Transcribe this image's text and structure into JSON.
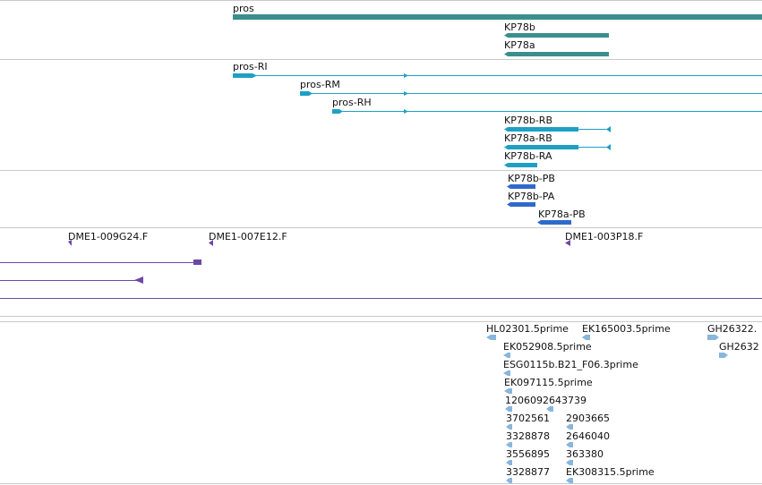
{
  "colors": {
    "gene": "#3a8f8c",
    "transcript": "#1ea0c4",
    "protein": "#2f6acb",
    "clone": "#6b48a8",
    "est": "#88b6dc"
  },
  "genes": {
    "pros": "pros",
    "kp78b": "KP78b",
    "kp78a": "KP78a"
  },
  "transcripts": {
    "pros_ri": "pros-RI",
    "pros_rm": "pros-RM",
    "pros_rh": "pros-RH",
    "kp78b_rb": "KP78b-RB",
    "kp78a_rb": "KP78a-RB",
    "kp78b_ra": "KP78b-RA"
  },
  "proteins": {
    "kp78b_pb": "KP78b-PB",
    "kp78b_pa": "KP78b-PA",
    "kp78a_pb": "KP78a-PB"
  },
  "clones": {
    "c1": "DME1-009G24.F",
    "c2": "DME1-007E12.F",
    "c3": "DME1-003P18.F"
  },
  "ests": {
    "e1": "HL02301.5prime",
    "e2": "EK165003.5prime",
    "e3": "GH26322.",
    "e4": "EK052908.5prime",
    "e5": "GH2632",
    "e6": "ESG0115b.B21_F06.3prime",
    "e7": "EK097115.5prime",
    "e8": "1206092643739",
    "e9": "3702561",
    "e10": "2903665",
    "e11": "3328878",
    "e12": "2646040",
    "e13": "3556895",
    "e14": "363380",
    "e15": "3328877",
    "e16": "EK308315.5prime"
  }
}
